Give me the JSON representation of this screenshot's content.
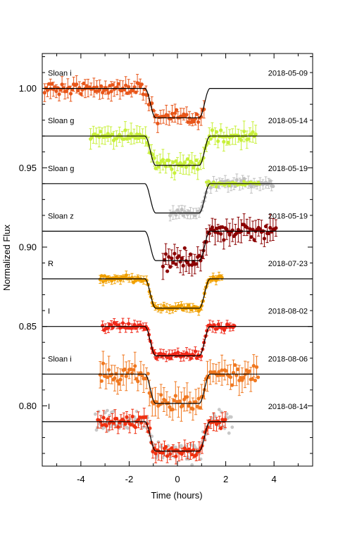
{
  "chart_data": {
    "type": "scatter",
    "xlabel": "Time (hours)",
    "ylabel": "Normalized Flux",
    "xlim": [
      -5.6,
      5.6
    ],
    "ylim": [
      0.762,
      1.022
    ],
    "x_ticks": [
      {
        "value": -4,
        "label": "-4"
      },
      {
        "value": -2,
        "label": "-2"
      },
      {
        "value": 0,
        "label": "0"
      },
      {
        "value": 2,
        "label": "2"
      },
      {
        "value": 4,
        "label": "4"
      }
    ],
    "y_ticks": [
      {
        "value": 0.8,
        "label": "0.80"
      },
      {
        "value": 0.85,
        "label": "0.85"
      },
      {
        "value": 0.9,
        "label": "0.90"
      },
      {
        "value": 0.95,
        "label": "0.95"
      },
      {
        "value": 1.0,
        "label": "1.00"
      }
    ],
    "grid": false,
    "model": {
      "t_ingress_start": -1.35,
      "t_ingress_end": -0.9,
      "t_egress_start": 0.95,
      "t_egress_end": 1.35,
      "depth": 0.0185
    },
    "series": [
      {
        "filter": "Sloan i",
        "date": "2018-05-09",
        "baseline": 1.0,
        "color": "#e8561a",
        "t_start": -5.5,
        "t_end": 1.15,
        "scatter": 0.0026
      },
      {
        "filter": "Sloan g",
        "date": "2018-05-14",
        "baseline": 0.97,
        "color": "#c8f03a",
        "t_start": -3.6,
        "t_end": 3.3,
        "scatter": 0.0028
      },
      {
        "filter": "Sloan g",
        "date": "2018-05-19",
        "baseline": 0.94,
        "color": "#c0c0c0",
        "t_start": -0.3,
        "t_end": 4.0,
        "scatter": 0.0018,
        "overlay_color": "#c8f03a"
      },
      {
        "filter": "Sloan z",
        "date": "2018-05-19",
        "baseline": 0.91,
        "color": "#8b0000",
        "t_start": -0.6,
        "t_end": 4.1,
        "scatter": 0.0035
      },
      {
        "filter": "R",
        "date": "2018-07-23",
        "baseline": 0.88,
        "color": "#f0a000",
        "t_start": -3.2,
        "t_end": 1.9,
        "scatter": 0.0012
      },
      {
        "filter": "I",
        "date": "2018-08-02",
        "baseline": 0.85,
        "color": "#f02818",
        "t_start": -3.1,
        "t_end": 2.4,
        "scatter": 0.0015
      },
      {
        "filter": "Sloan i",
        "date": "2018-08-06",
        "baseline": 0.82,
        "color": "#f07820",
        "t_start": -3.2,
        "t_end": 3.4,
        "scatter": 0.004
      },
      {
        "filter": "I",
        "date": "2018-08-14",
        "baseline": 0.79,
        "color": "#f03010",
        "t_start": -3.3,
        "t_end": 2.0,
        "scatter": 0.0025,
        "background_color": "#c8c8c8"
      }
    ]
  }
}
